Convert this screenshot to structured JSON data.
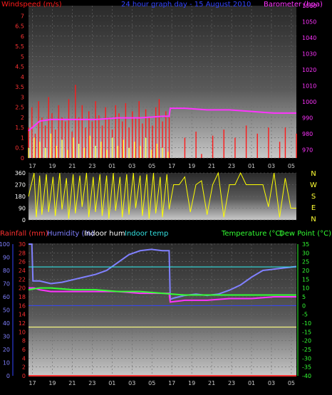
{
  "colors": {
    "wind": "#ff1a1a",
    "gust": "#ffff55",
    "baro": "#ff33ff",
    "winddir": "#ffff00",
    "humidity": "#8080ff",
    "indoorhum": "#ffff80",
    "indoortemp": "#33e0e0",
    "temperature": "#ff33ff",
    "dewpoint": "#33ff33",
    "rain": "#ff3030",
    "tempaxis": "#33ff33"
  },
  "chart_data": [
    {
      "type": "bar",
      "title": "24 hour graph day - 15 August 2010",
      "left_axis_label": "Windspeed (m/s)",
      "right_axis_label": "Barometer (hpa)",
      "left_ticks": [
        "7",
        "6.5",
        "6",
        "5.5",
        "5",
        "4.5",
        "4",
        "3.5",
        "3",
        "2.5",
        "2",
        "1.5",
        "1",
        "0.5",
        "0"
      ],
      "right_ticks": [
        "1060",
        "1050",
        "1040",
        "1030",
        "1020",
        "1010",
        "1000",
        "990",
        "980",
        "970"
      ],
      "ylim_left": [
        0,
        7.5
      ],
      "ylim_right": [
        965,
        1060
      ],
      "x_ticks": [
        "17",
        "19",
        "21",
        "23",
        "01",
        "03",
        "05",
        "17",
        "19",
        "21",
        "23",
        "01",
        "03",
        "05"
      ],
      "series": [
        {
          "name": "Windspeed (m/s)",
          "note": "average wind, red bars",
          "points": [
            [
              0.0,
              1.5
            ],
            [
              0.3,
              2.5
            ],
            [
              0.6,
              1.2
            ],
            [
              0.9,
              2.8
            ],
            [
              1.2,
              2.0
            ],
            [
              1.5,
              1.6
            ],
            [
              1.8,
              3.0
            ],
            [
              2.1,
              2.2
            ],
            [
              2.4,
              1.4
            ],
            [
              2.7,
              2.6
            ],
            [
              3.0,
              2.0
            ],
            [
              3.3,
              1.8
            ],
            [
              3.6,
              2.9
            ],
            [
              3.9,
              1.3
            ],
            [
              4.2,
              3.6
            ],
            [
              4.5,
              2.0
            ],
            [
              4.8,
              2.6
            ],
            [
              5.1,
              1.5
            ],
            [
              5.4,
              2.3
            ],
            [
              5.7,
              1.8
            ],
            [
              6.0,
              2.8
            ],
            [
              6.3,
              2.1
            ],
            [
              6.6,
              1.6
            ],
            [
              6.9,
              2.5
            ],
            [
              7.2,
              2.0
            ],
            [
              7.5,
              1.4
            ],
            [
              7.8,
              2.6
            ],
            [
              8.1,
              2.2
            ],
            [
              8.4,
              1.8
            ],
            [
              8.7,
              2.7
            ],
            [
              9.0,
              1.5
            ],
            [
              9.3,
              2.3
            ],
            [
              9.6,
              2.0
            ],
            [
              9.9,
              2.8
            ],
            [
              10.2,
              1.7
            ],
            [
              10.5,
              2.4
            ],
            [
              10.8,
              2.0
            ],
            [
              11.1,
              1.6
            ],
            [
              11.4,
              2.5
            ],
            [
              11.7,
              2.9
            ],
            [
              12.0,
              1.8
            ],
            [
              12.3,
              2.3
            ],
            [
              12.6,
              2.0
            ],
            [
              12.9,
              0.0
            ],
            [
              13.5,
              0.0
            ],
            [
              14.0,
              1.0
            ],
            [
              14.5,
              0.0
            ],
            [
              15.0,
              1.3
            ],
            [
              15.5,
              0.2
            ],
            [
              16.0,
              0.0
            ],
            [
              16.5,
              1.1
            ],
            [
              17.0,
              0.0
            ],
            [
              17.5,
              1.4
            ],
            [
              18.0,
              0.0
            ],
            [
              18.5,
              1.0
            ],
            [
              19.0,
              0.0
            ],
            [
              19.5,
              1.6
            ],
            [
              20.0,
              0.0
            ],
            [
              20.5,
              1.2
            ],
            [
              21.0,
              0.0
            ],
            [
              21.5,
              1.5
            ],
            [
              22.0,
              0.0
            ],
            [
              22.5,
              0.8
            ],
            [
              23.0,
              1.5
            ],
            [
              23.5,
              0.0
            ],
            [
              24.0,
              1.2
            ]
          ]
        },
        {
          "name": "Gust (m/s)",
          "note": "yellow bars, lower portion",
          "points": [
            [
              0.0,
              0.5
            ],
            [
              0.5,
              1.0
            ],
            [
              1.0,
              0.8
            ],
            [
              1.5,
              0.5
            ],
            [
              2.0,
              1.2
            ],
            [
              2.5,
              0.6
            ],
            [
              3.0,
              0.9
            ],
            [
              3.5,
              0.4
            ],
            [
              4.0,
              1.0
            ],
            [
              4.5,
              0.7
            ],
            [
              5.0,
              0.5
            ],
            [
              5.5,
              1.1
            ],
            [
              6.0,
              0.6
            ],
            [
              6.5,
              0.8
            ],
            [
              7.0,
              0.4
            ],
            [
              7.5,
              1.0
            ],
            [
              8.0,
              0.6
            ],
            [
              8.5,
              0.9
            ],
            [
              9.0,
              0.5
            ],
            [
              9.5,
              0.8
            ],
            [
              10.0,
              0.6
            ],
            [
              10.5,
              1.0
            ],
            [
              11.0,
              0.4
            ],
            [
              11.5,
              0.7
            ],
            [
              12.0,
              0.5
            ],
            [
              12.5,
              0.3
            ]
          ]
        },
        {
          "name": "Barometer (hpa)",
          "type": "line",
          "axis": "right",
          "x": [
            0,
            0.5,
            1,
            2,
            4,
            6,
            8,
            10,
            12,
            12.6,
            12.7,
            14,
            16,
            18,
            20,
            22,
            24
          ],
          "values": [
            982,
            985,
            988,
            989,
            989,
            989,
            990,
            990,
            991,
            991,
            996,
            996,
            995,
            995,
            994,
            993,
            993
          ]
        }
      ]
    },
    {
      "type": "line",
      "title": "",
      "right_labels": [
        "N",
        "W",
        "S",
        "E",
        "N"
      ],
      "left_ticks": [
        "360",
        "270",
        "180",
        "90",
        "0"
      ],
      "ylim": [
        0,
        360
      ],
      "series": [
        {
          "name": "Wind direction",
          "note": "yellow rapid-switching direction trace",
          "x": [
            0,
            0.5,
            0.7,
            1.0,
            1.2,
            1.6,
            1.8,
            2.2,
            2.4,
            2.8,
            3.0,
            3.4,
            3.6,
            4.0,
            4.2,
            4.6,
            4.8,
            5.2,
            5.4,
            5.8,
            6.0,
            6.4,
            6.6,
            7.0,
            7.2,
            7.6,
            7.8,
            8.2,
            8.4,
            8.8,
            9.0,
            9.4,
            9.6,
            10.0,
            10.2,
            10.6,
            10.8,
            11.2,
            11.4,
            11.8,
            12.0,
            12.4,
            12.6,
            13.0,
            13.5,
            14.0,
            14.5,
            15.0,
            15.5,
            16.0,
            16.5,
            17.0,
            17.5,
            18.0,
            18.5,
            19.0,
            19.5,
            20.0,
            20.5,
            21.0,
            21.5,
            22.0,
            22.5,
            23.0,
            23.5,
            24.0
          ],
          "values": [
            180,
            360,
            20,
            340,
            40,
            350,
            60,
            330,
            30,
            360,
            80,
            320,
            10,
            350,
            50,
            340,
            100,
            360,
            20,
            330,
            60,
            350,
            30,
            340,
            10,
            360,
            70,
            330,
            20,
            350,
            40,
            360,
            90,
            340,
            30,
            350,
            10,
            360,
            50,
            330,
            20,
            350,
            80,
            270,
            270,
            330,
            60,
            270,
            300,
            40,
            270,
            360,
            20,
            270,
            270,
            360,
            270,
            270,
            270,
            270,
            100,
            360,
            20,
            320,
            90,
            90
          ]
        }
      ]
    },
    {
      "type": "line",
      "title": "",
      "labels": {
        "rainfall": "Rainfall (mm)",
        "humidity": "Humidity (%)",
        "indoor_hum": "Indoor hum",
        "indoor_temp": "Indoor temp",
        "temperature": "Temperature (°C)",
        "dew_point": "Dew Point (°C)"
      },
      "rain_ticks": [
        "30",
        "28",
        "26",
        "24",
        "22",
        "20",
        "18",
        "16",
        "14",
        "12",
        "10",
        "8",
        "6",
        "4",
        "2",
        "0"
      ],
      "hum_ticks": [
        "100",
        "90",
        "80",
        "70",
        "60",
        "50",
        "40",
        "30",
        "20",
        "10",
        "0"
      ],
      "temp_ticks": [
        "35",
        "30",
        "25",
        "20",
        "15",
        "10",
        "5",
        "0",
        "-5",
        "-10",
        "-15",
        "-20",
        "-25",
        "-30",
        "-35",
        "-40"
      ],
      "ylim_temp": [
        -40,
        35
      ],
      "ylim_hum": [
        0,
        100
      ],
      "ylim_rain": [
        0,
        30
      ],
      "x_ticks": [
        "17",
        "19",
        "21",
        "23",
        "01",
        "03",
        "05",
        "17",
        "19",
        "21",
        "23",
        "01",
        "03",
        "05"
      ],
      "series": [
        {
          "name": "Humidity (%)",
          "axis": "hum",
          "x": [
            0,
            0.3,
            0.4,
            1,
            2,
            3,
            4,
            5,
            6,
            7,
            8,
            9,
            10,
            11,
            12,
            12.6,
            12.7,
            13,
            14,
            15,
            16,
            17,
            18,
            19,
            20,
            21,
            22,
            23,
            24
          ],
          "values": [
            100,
            100,
            72,
            72,
            70,
            71,
            73,
            75,
            77,
            80,
            86,
            92,
            95,
            96,
            95,
            95,
            58,
            59,
            61,
            62,
            61,
            62,
            65,
            69,
            75,
            80,
            81,
            82,
            83
          ]
        },
        {
          "name": "Indoor hum",
          "axis": "hum",
          "x": [
            0,
            2,
            4,
            6,
            8,
            10,
            12,
            14,
            16,
            18,
            20,
            22,
            24
          ],
          "values": [
            37,
            37,
            37,
            37,
            37,
            37,
            37,
            37,
            37,
            37,
            37,
            37,
            37
          ]
        },
        {
          "name": "Indoor temp",
          "axis": "temp",
          "x": [
            0,
            2,
            4,
            6,
            8,
            10,
            12,
            14,
            16,
            18,
            20,
            22,
            24
          ],
          "values": [
            22,
            22,
            22,
            22,
            22,
            22,
            22,
            22,
            22,
            22,
            22,
            22,
            22
          ]
        },
        {
          "name": "Temperature (°C)",
          "axis": "temp",
          "x": [
            0,
            0.5,
            1,
            2,
            4,
            6,
            8,
            10,
            12,
            12.6,
            12.7,
            14,
            16,
            18,
            20,
            22,
            24
          ],
          "values": [
            10,
            10,
            9,
            8,
            8,
            8,
            8,
            7,
            7,
            7,
            2,
            3,
            3,
            4,
            4,
            5,
            5
          ]
        },
        {
          "name": "Dew Point (°C)",
          "axis": "temp",
          "x": [
            0,
            1,
            2,
            4,
            6,
            8,
            10,
            12,
            14,
            16,
            18,
            20,
            22,
            24
          ],
          "values": [
            9,
            10,
            10,
            9,
            9,
            8,
            8,
            7,
            6,
            6,
            6,
            6,
            6,
            6
          ]
        },
        {
          "name": "Rainfall (mm)",
          "axis": "rain",
          "x": [
            0,
            24
          ],
          "values": [
            0,
            0
          ]
        }
      ]
    }
  ]
}
